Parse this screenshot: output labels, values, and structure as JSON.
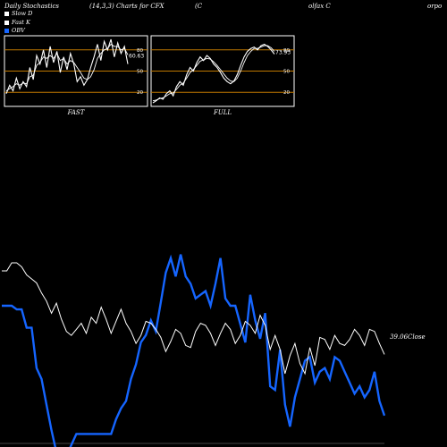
{
  "header": {
    "title": "Daily Stochastics",
    "params": "(14,3,3) Charts for CFX",
    "name_a": "(C",
    "name_b": "olfax C",
    "name_c": "orpo"
  },
  "legend": [
    {
      "label": "Slow  D",
      "color": "#ffffff"
    },
    {
      "label": "Fast K",
      "color": "#ffffff"
    },
    {
      "label": "OBV",
      "color": "#1565ff"
    }
  ],
  "panels": {
    "fast": {
      "label": "FAST",
      "last_value": "60.63",
      "levels": [
        "80",
        "50",
        "20"
      ]
    },
    "full": {
      "label": "FULL",
      "last_value": "73.93",
      "levels": [
        "80",
        "50",
        "20"
      ]
    }
  },
  "bottom": {
    "close_label": "39.06Close"
  },
  "colors": {
    "background": "#000000",
    "price": "#ffffff",
    "obv": "#1565ff",
    "level_line": "#c07800",
    "panel_border": "#ffffff"
  },
  "chart_data": [
    {
      "type": "line",
      "title": "FAST",
      "ylim": [
        0,
        100
      ],
      "levels": [
        80,
        50,
        20
      ],
      "series": [
        {
          "name": "Fast K",
          "values": [
            18,
            30,
            22,
            40,
            25,
            35,
            28,
            55,
            38,
            72,
            60,
            80,
            55,
            85,
            62,
            78,
            48,
            70,
            52,
            75,
            60,
            35,
            42,
            30,
            38,
            55,
            70,
            88,
            65,
            92,
            80,
            95,
            70,
            90,
            75,
            85,
            60
          ]
        },
        {
          "name": "Slow  D",
          "values": [
            22,
            25,
            28,
            32,
            30,
            33,
            32,
            42,
            44,
            58,
            62,
            70,
            68,
            72,
            68,
            75,
            65,
            68,
            60,
            65,
            62,
            55,
            48,
            40,
            38,
            42,
            52,
            68,
            75,
            80,
            82,
            88,
            85,
            85,
            80,
            82,
            73
          ]
        }
      ]
    },
    {
      "type": "line",
      "title": "FULL",
      "ylim": [
        0,
        100
      ],
      "levels": [
        80,
        50,
        20
      ],
      "series": [
        {
          "name": "Fast K",
          "values": [
            5,
            8,
            12,
            10,
            18,
            22,
            15,
            28,
            35,
            30,
            45,
            55,
            50,
            62,
            70,
            65,
            72,
            68,
            60,
            55,
            48,
            40,
            35,
            32,
            36,
            45,
            58,
            70,
            78,
            82,
            84,
            80,
            86,
            88,
            85,
            80,
            74
          ]
        },
        {
          "name": "Slow  D",
          "values": [
            8,
            9,
            11,
            12,
            15,
            18,
            19,
            24,
            30,
            33,
            40,
            48,
            52,
            58,
            64,
            66,
            68,
            67,
            63,
            58,
            52,
            46,
            40,
            36,
            35,
            40,
            50,
            62,
            72,
            78,
            82,
            82,
            84,
            86,
            86,
            83,
            78
          ]
        }
      ]
    },
    {
      "type": "line",
      "title": "",
      "series": [
        {
          "name": "Close",
          "values": [
            43.2,
            43.2,
            43.6,
            43.6,
            43.4,
            43.0,
            42.8,
            42.6,
            42.1,
            41.7,
            41.1,
            41.6,
            40.8,
            40.2,
            40.0,
            40.3,
            40.6,
            40.1,
            40.9,
            40.6,
            41.4,
            40.8,
            40.1,
            40.7,
            41.3,
            40.6,
            40.2,
            39.6,
            40.0,
            40.7,
            40.6,
            40.3,
            39.9,
            39.2,
            39.7,
            40.3,
            40.1,
            39.5,
            39.4,
            40.2,
            40.6,
            40.5,
            40.1,
            39.5,
            40.1,
            40.6,
            40.3,
            39.6,
            40.0,
            40.7,
            40.5,
            40.1,
            41.0,
            40.5,
            39.3,
            40.0,
            39.3,
            38.1,
            39.0,
            39.6,
            38.6,
            38.1,
            39.4,
            38.5,
            39.9,
            39.8,
            39.3,
            40.0,
            39.6,
            39.5,
            39.8,
            40.3,
            40.0,
            39.5,
            40.3,
            40.2,
            39.6,
            39.06
          ]
        },
        {
          "name": "OBV",
          "values": [
            -4.2,
            -4.2,
            -4.2,
            -4.3,
            -4.3,
            -4.8,
            -4.8,
            -5.9,
            -6.2,
            -6.9,
            -7.6,
            -8.2,
            -8.1,
            -8.3,
            -8.0,
            -7.7,
            -7.7,
            -7.7,
            -7.7,
            -7.7,
            -7.7,
            -7.7,
            -7.7,
            -7.3,
            -7.0,
            -6.8,
            -6.2,
            -5.8,
            -5.2,
            -5.0,
            -4.6,
            -4.9,
            -4.1,
            -3.3,
            -2.9,
            -3.4,
            -2.8,
            -3.4,
            -3.6,
            -4.0,
            -3.9,
            -3.8,
            -4.2,
            -3.6,
            -2.9,
            -4.0,
            -4.2,
            -4.2,
            -4.7,
            -5.2,
            -3.9,
            -4.6,
            -5.1,
            -4.4,
            -6.4,
            -6.5,
            -5.4,
            -6.9,
            -7.5,
            -6.7,
            -6.2,
            -5.7,
            -5.6,
            -6.3,
            -6.0,
            -5.9,
            -6.2,
            -5.6,
            -5.7,
            -6.0,
            -6.3,
            -6.6,
            -6.4,
            -6.7,
            -6.5,
            -6.0,
            -6.8,
            -7.2
          ]
        }
      ]
    }
  ]
}
